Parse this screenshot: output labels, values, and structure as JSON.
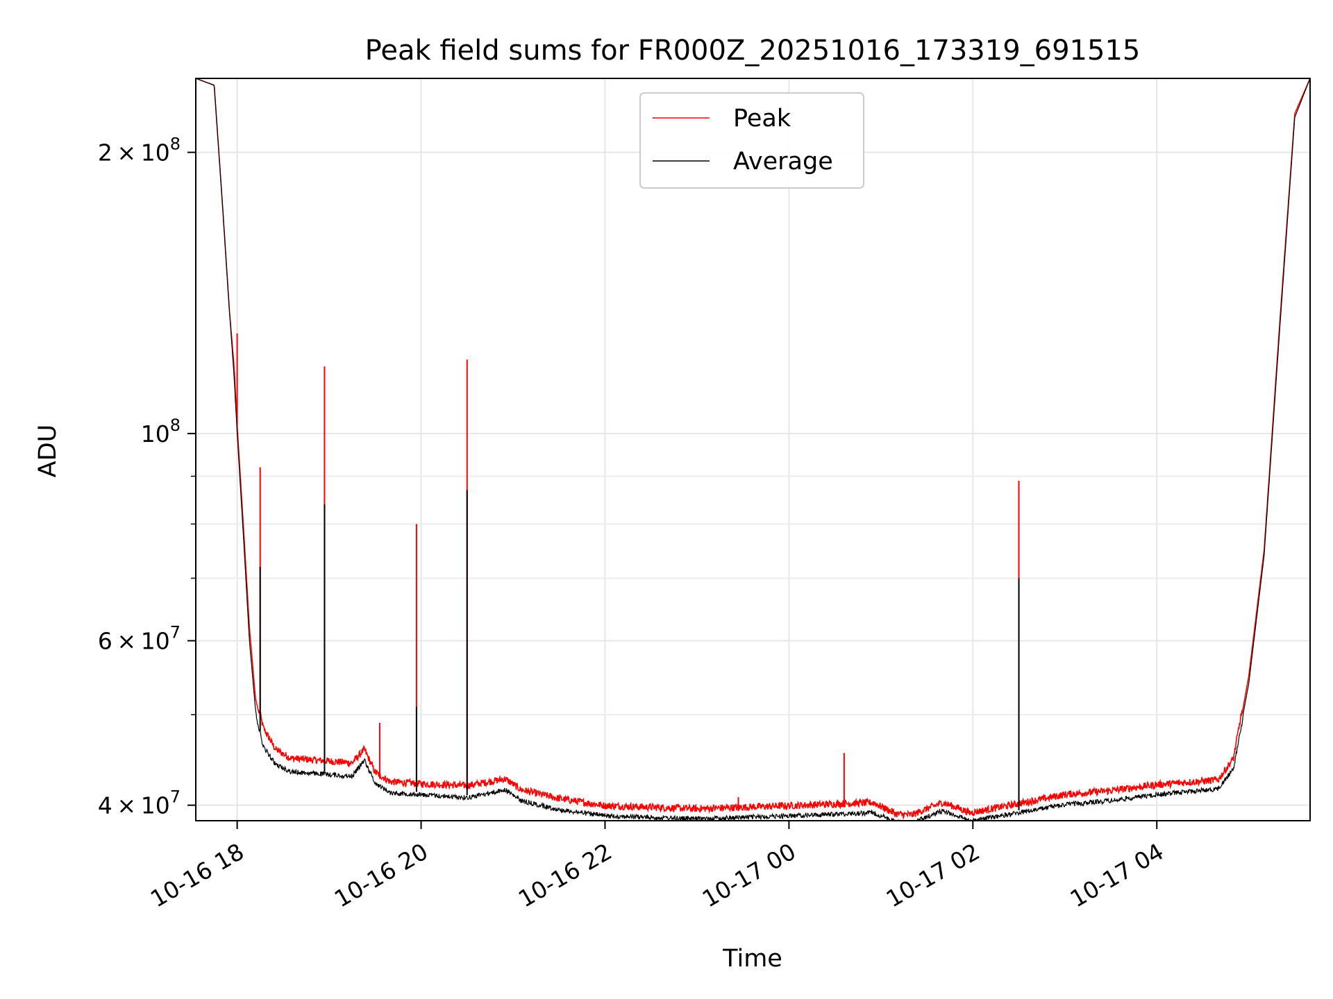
{
  "chart_data": {
    "type": "line",
    "title": "Peak field sums for FR000Z_20251016_173319_691515",
    "xlabel": "Time",
    "ylabel": "ADU",
    "y_scale": "log",
    "ylim": [
      38500000,
      240000000
    ],
    "xlim": [
      "2025-10-16 17:33",
      "2025-10-17 05:40"
    ],
    "grid": true,
    "legend": "top-center",
    "x_ticks": [
      {
        "t": "2025-10-16 18:00",
        "label": "10-16 18"
      },
      {
        "t": "2025-10-16 20:00",
        "label": "10-16 20"
      },
      {
        "t": "2025-10-16 22:00",
        "label": "10-16 22"
      },
      {
        "t": "2025-10-17 00:00",
        "label": "10-17 00"
      },
      {
        "t": "2025-10-17 02:00",
        "label": "10-17 02"
      },
      {
        "t": "2025-10-17 04:00",
        "label": "10-17 04"
      }
    ],
    "y_ticks": [
      {
        "value": 40000000,
        "mantissa": "4",
        "times": "×",
        "base": "10",
        "exp": "7"
      },
      {
        "value": 60000000,
        "mantissa": "6",
        "times": "×",
        "base": "10",
        "exp": "7"
      },
      {
        "value": 100000000,
        "mantissa": "",
        "times": "",
        "base": "10",
        "exp": "8"
      },
      {
        "value": 200000000,
        "mantissa": "2",
        "times": "×",
        "base": "10",
        "exp": "8"
      }
    ],
    "y_minor_ticks": [
      50000000,
      70000000,
      80000000,
      90000000
    ],
    "series": [
      {
        "name": "Peak",
        "color": "#ff0000",
        "points": [
          [
            "2025-10-16 17:33",
            240000000
          ],
          [
            "2025-10-16 17:45",
            236000000
          ],
          [
            "2025-10-16 17:50",
            180000000
          ],
          [
            "2025-10-16 17:55",
            135000000
          ],
          [
            "2025-10-16 17:58",
            118000000
          ],
          [
            "2025-10-16 18:00",
            102000000
          ],
          [
            "2025-10-16 18:04",
            80000000
          ],
          [
            "2025-10-16 18:08",
            62000000
          ],
          [
            "2025-10-16 18:12",
            52000000
          ],
          [
            "2025-10-16 18:17",
            48000000
          ],
          [
            "2025-10-16 18:25",
            45500000
          ],
          [
            "2025-10-16 18:35",
            44500000
          ],
          [
            "2025-10-16 19:00",
            44200000
          ],
          [
            "2025-10-16 19:15",
            44000000
          ],
          [
            "2025-10-16 19:23",
            45500000
          ],
          [
            "2025-10-16 19:30",
            43000000
          ],
          [
            "2025-10-16 19:40",
            42000000
          ],
          [
            "2025-10-16 20:00",
            41800000
          ],
          [
            "2025-10-16 20:30",
            41600000
          ],
          [
            "2025-10-16 20:55",
            42300000
          ],
          [
            "2025-10-16 21:05",
            41200000
          ],
          [
            "2025-10-16 21:30",
            40300000
          ],
          [
            "2025-10-16 22:00",
            39600000
          ],
          [
            "2025-10-16 23:00",
            39300000
          ],
          [
            "2025-10-17 00:00",
            39600000
          ],
          [
            "2025-10-17 00:55",
            39900000
          ],
          [
            "2025-10-17 01:10",
            38800000
          ],
          [
            "2025-10-17 01:20",
            38700000
          ],
          [
            "2025-10-17 01:40",
            39900000
          ],
          [
            "2025-10-17 01:50",
            39400000
          ],
          [
            "2025-10-17 01:58",
            38900000
          ],
          [
            "2025-10-17 02:30",
            39800000
          ],
          [
            "2025-10-17 03:00",
            40700000
          ],
          [
            "2025-10-17 03:30",
            41100000
          ],
          [
            "2025-10-17 04:00",
            41700000
          ],
          [
            "2025-10-17 04:40",
            42200000
          ],
          [
            "2025-10-17 04:50",
            44500000
          ],
          [
            "2025-10-17 05:00",
            55000000
          ],
          [
            "2025-10-17 05:10",
            75000000
          ],
          [
            "2025-10-17 05:20",
            130000000
          ],
          [
            "2025-10-17 05:30",
            220000000
          ],
          [
            "2025-10-17 05:40",
            240000000
          ]
        ],
        "spikes": [
          [
            "2025-10-16 18:00",
            128000000
          ],
          [
            "2025-10-16 18:15",
            92000000
          ],
          [
            "2025-10-16 18:57",
            118000000
          ],
          [
            "2025-10-16 19:33",
            49000000
          ],
          [
            "2025-10-16 19:57",
            80000000
          ],
          [
            "2025-10-16 20:30",
            120000000
          ],
          [
            "2025-10-16 23:27",
            40800000
          ],
          [
            "2025-10-17 00:36",
            45500000
          ],
          [
            "2025-10-17 02:30",
            89000000
          ]
        ]
      },
      {
        "name": "Average",
        "color": "#000000",
        "points": [
          [
            "2025-10-16 17:33",
            240000000
          ],
          [
            "2025-10-16 17:45",
            236000000
          ],
          [
            "2025-10-16 17:50",
            180000000
          ],
          [
            "2025-10-16 17:55",
            135000000
          ],
          [
            "2025-10-16 17:58",
            115000000
          ],
          [
            "2025-10-16 18:00",
            100000000
          ],
          [
            "2025-10-16 18:04",
            78000000
          ],
          [
            "2025-10-16 18:08",
            60000000
          ],
          [
            "2025-10-16 18:12",
            50500000
          ],
          [
            "2025-10-16 18:17",
            46500000
          ],
          [
            "2025-10-16 18:25",
            44500000
          ],
          [
            "2025-10-16 18:35",
            43700000
          ],
          [
            "2025-10-16 19:00",
            43400000
          ],
          [
            "2025-10-16 19:15",
            43200000
          ],
          [
            "2025-10-16 19:23",
            45000000
          ],
          [
            "2025-10-16 19:30",
            42500000
          ],
          [
            "2025-10-16 19:40",
            41500000
          ],
          [
            "2025-10-16 20:00",
            41300000
          ],
          [
            "2025-10-16 20:30",
            41000000
          ],
          [
            "2025-10-16 20:55",
            41800000
          ],
          [
            "2025-10-16 21:05",
            40700000
          ],
          [
            "2025-10-16 21:30",
            39800000
          ],
          [
            "2025-10-16 22:00",
            39200000
          ],
          [
            "2025-10-16 23:00",
            38900000
          ],
          [
            "2025-10-17 00:00",
            39200000
          ],
          [
            "2025-10-17 00:55",
            39500000
          ],
          [
            "2025-10-17 01:10",
            38600000
          ],
          [
            "2025-10-17 01:20",
            38500000
          ],
          [
            "2025-10-17 01:40",
            39700000
          ],
          [
            "2025-10-17 01:50",
            39200000
          ],
          [
            "2025-10-17 01:58",
            38700000
          ],
          [
            "2025-10-17 02:30",
            39500000
          ],
          [
            "2025-10-17 03:00",
            40300000
          ],
          [
            "2025-10-17 03:30",
            40700000
          ],
          [
            "2025-10-17 04:00",
            41300000
          ],
          [
            "2025-10-17 04:40",
            41900000
          ],
          [
            "2025-10-17 04:50",
            44000000
          ],
          [
            "2025-10-17 05:00",
            54000000
          ],
          [
            "2025-10-17 05:10",
            74000000
          ],
          [
            "2025-10-17 05:20",
            128000000
          ],
          [
            "2025-10-17 05:30",
            218000000
          ],
          [
            "2025-10-17 05:40",
            240000000
          ]
        ],
        "spikes": [
          [
            "2025-10-16 18:15",
            72000000
          ],
          [
            "2025-10-16 18:57",
            84000000
          ],
          [
            "2025-10-16 19:57",
            51000000
          ],
          [
            "2025-10-16 20:30",
            87000000
          ],
          [
            "2025-10-17 02:30",
            70000000
          ]
        ]
      }
    ]
  }
}
